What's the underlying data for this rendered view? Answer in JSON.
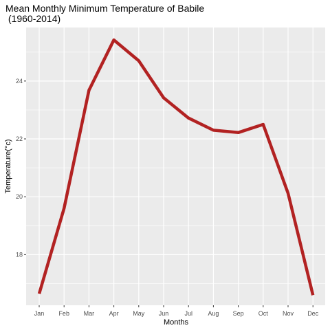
{
  "chart_data": {
    "type": "line",
    "title_line1": "Mean Monthly Minimum Temperature  of Babile",
    "title_line2": " (1960-2014)",
    "xlabel": "Months",
    "ylabel": "Temperature(°c)",
    "categories": [
      "Jan",
      "Feb",
      "Mar",
      "Apr",
      "May",
      "Jun",
      "Jul",
      "Aug",
      "Sep",
      "Oct",
      "Nov",
      "Dec"
    ],
    "values": [
      16.65,
      19.6,
      23.68,
      25.42,
      24.7,
      23.42,
      22.72,
      22.3,
      22.22,
      22.5,
      20.12,
      16.6
    ],
    "ylim": [
      16.25,
      25.85
    ],
    "yticks": [
      18,
      20,
      22,
      24
    ],
    "grid": true,
    "line_color": "#b22222",
    "panel_color": "#ebebeb",
    "grid_color": "#ffffff"
  }
}
